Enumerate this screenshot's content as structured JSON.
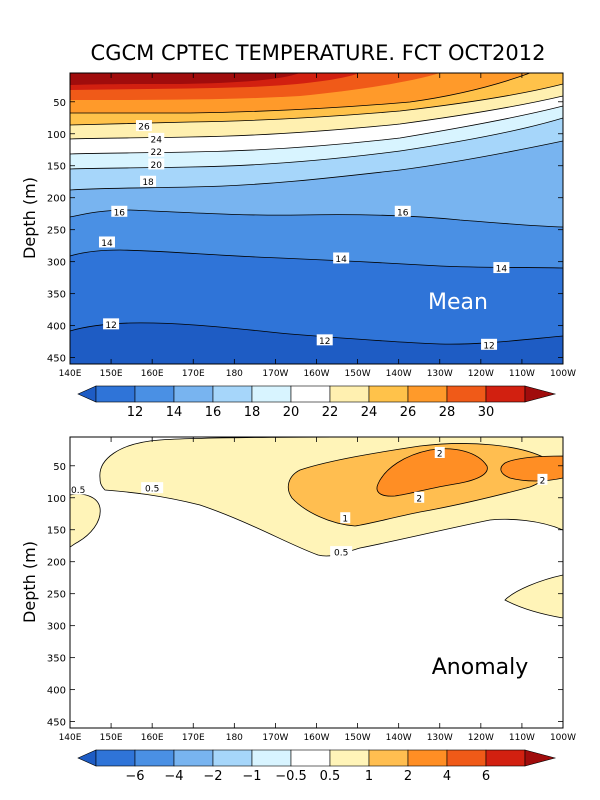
{
  "title": "CGCM CPTEC TEMPERATURE. FCT OCT2012",
  "colors": {
    "warm": [
      "#fff0b0",
      "#ffc24a",
      "#ff9a2a",
      "#f05a18",
      "#d22010",
      "#a00c0c"
    ],
    "cool": [
      "#ffffff",
      "#d8f4ff",
      "#a6d6fa",
      "#78b4f0",
      "#4a90e4",
      "#2f74d8",
      "#1e5cc4"
    ],
    "anom_pos": [
      "#fff4b8",
      "#ffbe50",
      "#ff8e24"
    ],
    "line": "#000000"
  },
  "chart_data": [
    {
      "type": "heatmap",
      "name": "mean",
      "panel_label": "Mean",
      "ylabel": "Depth (m)",
      "y_ticks": [
        "50",
        "100",
        "150",
        "200",
        "250",
        "300",
        "350",
        "400",
        "450"
      ],
      "y_values": [
        50,
        100,
        150,
        200,
        250,
        300,
        350,
        400,
        450
      ],
      "ylim": [
        460,
        5
      ],
      "x_ticks": [
        "140E",
        "150E",
        "160E",
        "170E",
        "180",
        "170W",
        "160W",
        "150W",
        "140W",
        "130W",
        "120W",
        "110W",
        "100W"
      ],
      "x_values": [
        140,
        150,
        160,
        170,
        180,
        190,
        200,
        210,
        220,
        230,
        240,
        250,
        260
      ],
      "xlim": [
        140,
        260
      ],
      "contour_labels": [
        {
          "text": "26",
          "lon": 158,
          "depth": 88
        },
        {
          "text": "24",
          "lon": 161,
          "depth": 108
        },
        {
          "text": "22",
          "lon": 161,
          "depth": 128
        },
        {
          "text": "20",
          "lon": 161,
          "depth": 148
        },
        {
          "text": "18",
          "lon": 159,
          "depth": 175
        },
        {
          "text": "16",
          "lon": 152,
          "depth": 222
        },
        {
          "text": "16",
          "lon": 221,
          "depth": 222
        },
        {
          "text": "14",
          "lon": 149,
          "depth": 270
        },
        {
          "text": "14",
          "lon": 206,
          "depth": 295
        },
        {
          "text": "14",
          "lon": 245,
          "depth": 310
        },
        {
          "text": "12",
          "lon": 150,
          "depth": 398
        },
        {
          "text": "12",
          "lon": 202,
          "depth": 423
        },
        {
          "text": "12",
          "lon": 242,
          "depth": 430
        }
      ],
      "colorbar": {
        "labels": [
          "12",
          "14",
          "16",
          "18",
          "20",
          "22",
          "24",
          "26",
          "28",
          "30"
        ]
      }
    },
    {
      "type": "heatmap",
      "name": "anomaly",
      "panel_label": "Anomaly",
      "ylabel": "Depth (m)",
      "y_ticks": [
        "50",
        "100",
        "150",
        "200",
        "250",
        "300",
        "350",
        "400",
        "450"
      ],
      "y_values": [
        50,
        100,
        150,
        200,
        250,
        300,
        350,
        400,
        450
      ],
      "ylim": [
        460,
        5
      ],
      "x_ticks": [
        "140E",
        "150E",
        "160E",
        "170E",
        "180",
        "170W",
        "160W",
        "150W",
        "140W",
        "130W",
        "120W",
        "110W",
        "100W"
      ],
      "x_values": [
        140,
        150,
        160,
        170,
        180,
        190,
        200,
        210,
        220,
        230,
        240,
        250,
        260
      ],
      "xlim": [
        140,
        260
      ],
      "contour_labels": [
        {
          "text": "0.5",
          "lon": 142,
          "depth": 87
        },
        {
          "text": "0.5",
          "lon": 160,
          "depth": 85
        },
        {
          "text": "1",
          "lon": 207,
          "depth": 132
        },
        {
          "text": "0.5",
          "lon": 206,
          "depth": 185
        },
        {
          "text": "2",
          "lon": 230,
          "depth": 30
        },
        {
          "text": "2",
          "lon": 225,
          "depth": 100
        },
        {
          "text": "2",
          "lon": 255,
          "depth": 72
        }
      ],
      "colorbar": {
        "labels": [
          "−6",
          "−4",
          "−2",
          "−1",
          "−0.5",
          "0.5",
          "1",
          "2",
          "4",
          "6"
        ]
      }
    }
  ]
}
